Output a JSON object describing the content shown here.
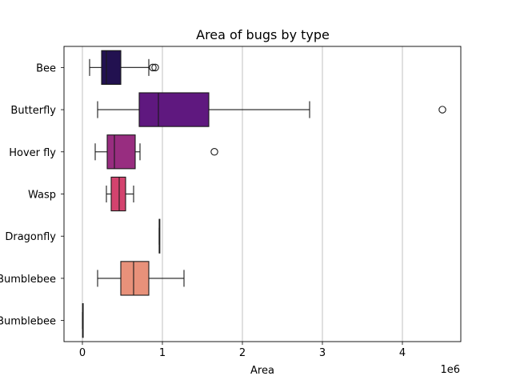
{
  "chart_data": {
    "type": "box",
    "orientation": "horizontal",
    "title": "Area of bugs by type",
    "xlabel": "Area",
    "ylabel": "",
    "x_offset_label": "1e6",
    "xlim": [
      -230000,
      4730000
    ],
    "x_ticks": [
      0,
      1000000,
      2000000,
      3000000,
      4000000
    ],
    "x_tick_labels": [
      "0",
      "1",
      "2",
      "3",
      "4"
    ],
    "grid": "vertical",
    "legend": "none",
    "categories": [
      "Bee",
      "Butterfly",
      "Hover fly",
      "Wasp",
      "Dragonfly",
      "Bumblebee",
      "Bumblebee"
    ],
    "boxes": [
      {
        "category": "Bee",
        "whisker_low": 90000,
        "q1": 240000,
        "median": 300000,
        "q3": 480000,
        "whisker_high": 830000,
        "outliers": [
          880000,
          910000
        ],
        "color": "#221150"
      },
      {
        "category": "Butterfly",
        "whisker_low": 190000,
        "q1": 710000,
        "median": 950000,
        "q3": 1580000,
        "whisker_high": 2840000,
        "outliers": [
          4500000
        ],
        "color": "#5f187f"
      },
      {
        "category": "Hover fly",
        "whisker_low": 160000,
        "q1": 310000,
        "median": 400000,
        "q3": 660000,
        "whisker_high": 720000,
        "outliers": [
          1650000
        ],
        "color": "#982d80"
      },
      {
        "category": "Wasp",
        "whisker_low": 300000,
        "q1": 360000,
        "median": 460000,
        "q3": 540000,
        "whisker_high": 640000,
        "outliers": [],
        "color": "#d3436e"
      },
      {
        "category": "Dragonfly",
        "whisker_low": 960000,
        "q1": 960000,
        "median": 960000,
        "q3": 960000,
        "whisker_high": 960000,
        "outliers": [],
        "color": "#f8765c"
      },
      {
        "category": "Bumblebee",
        "whisker_low": 190000,
        "q1": 480000,
        "median": 640000,
        "q3": 830000,
        "whisker_high": 1270000,
        "outliers": [],
        "color": "#e8917a"
      },
      {
        "category": "Bumblebee",
        "whisker_low": 0,
        "q1": 2000,
        "median": 4000,
        "q3": 6000,
        "whisker_high": 8000,
        "outliers": [],
        "color": "#fcfdbf"
      }
    ]
  }
}
